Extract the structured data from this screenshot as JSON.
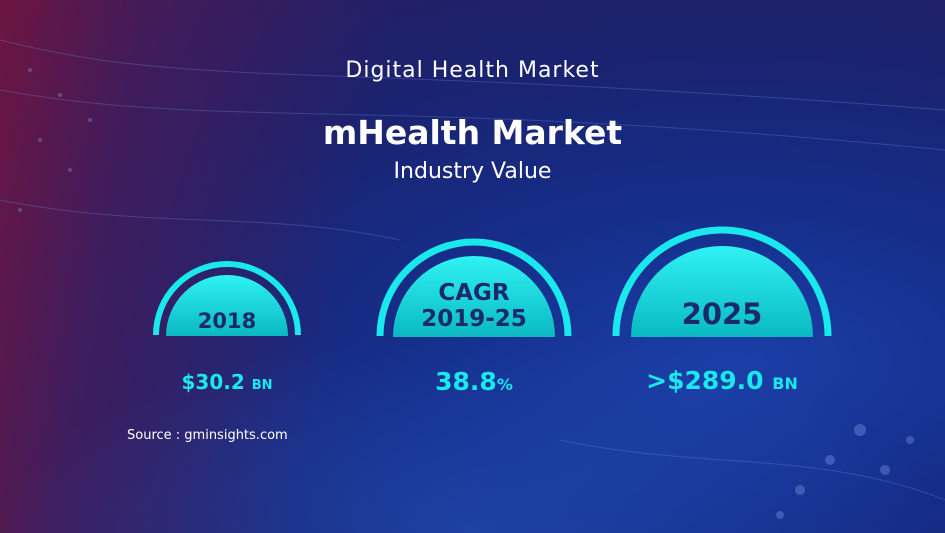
{
  "header": {
    "category": "Digital Health Market",
    "title": "mHealth Market",
    "subtitle": "Industry Value"
  },
  "metrics": [
    {
      "label": "2018",
      "value": "$30.2",
      "unit": "BN"
    },
    {
      "label_line1": "CAGR",
      "label_line2": "2019-25",
      "value": "38.8",
      "unit": "%"
    },
    {
      "label": "2025",
      "value": ">$289.0",
      "unit": "BN"
    }
  ],
  "source": "Source : gminsights.com",
  "colors": {
    "accent": "#19e8ec",
    "dome_text": "#1a2a6b",
    "background": "#152e8a"
  }
}
